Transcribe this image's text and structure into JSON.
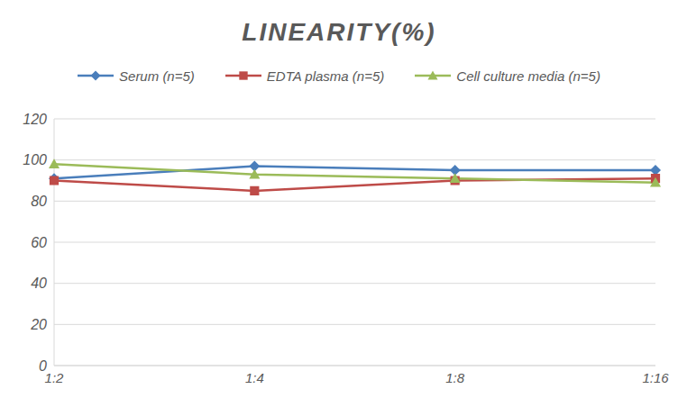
{
  "chart_data": {
    "type": "line",
    "title": "LINEARITY(%)",
    "categories": [
      "1:2",
      "1:4",
      "1:8",
      "1:16"
    ],
    "series": [
      {
        "name": "Serum (n=5)",
        "color": "#4a7ebb",
        "marker": "diamond",
        "values": [
          91,
          97,
          95,
          95
        ]
      },
      {
        "name": "EDTA plasma (n=5)",
        "color": "#be4b48",
        "marker": "square",
        "values": [
          90,
          85,
          90,
          91
        ]
      },
      {
        "name": "Cell culture media (n=5)",
        "color": "#9bbb59",
        "marker": "triangle",
        "values": [
          98,
          93,
          91,
          89
        ]
      }
    ],
    "ylim": [
      0,
      120
    ],
    "yticks": [
      0,
      20,
      40,
      60,
      80,
      100,
      120
    ],
    "grid": true,
    "legend": "top"
  }
}
